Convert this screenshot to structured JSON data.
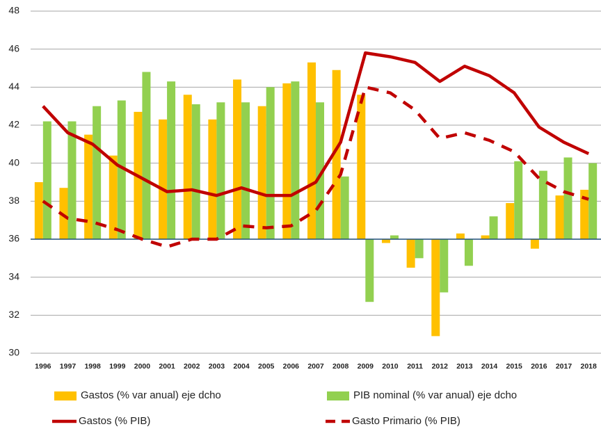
{
  "chart_data": {
    "type": "bar-line",
    "categories": [
      "1996",
      "1997",
      "1998",
      "1999",
      "2000",
      "2001",
      "2002",
      "2003",
      "2004",
      "2005",
      "2006",
      "2007",
      "2008",
      "2009",
      "2010",
      "2011",
      "2012",
      "2013",
      "2014",
      "2015",
      "2016",
      "2017",
      "2018"
    ],
    "ylim": [
      30,
      48
    ],
    "yticks": [
      30,
      32,
      34,
      36,
      38,
      40,
      42,
      44,
      46,
      48
    ],
    "y2lim": [
      -6,
      12
    ],
    "grid": true,
    "legend": "bottom",
    "series": [
      {
        "name": "Gastos (% var anual) eje dcho",
        "type": "bar",
        "axis": "y2",
        "color": "#ffc000",
        "values": [
          3.0,
          2.7,
          5.5,
          4.4,
          6.7,
          6.3,
          7.6,
          6.3,
          8.4,
          7.0,
          8.2,
          9.3,
          8.9,
          7.6,
          -0.2,
          -1.5,
          -5.1,
          0.3,
          0.2,
          1.9,
          -0.5,
          2.3,
          2.6
        ]
      },
      {
        "name": "PIB nominal (% var anual) eje dcho",
        "type": "bar",
        "axis": "y2",
        "color": "#92d050",
        "values": [
          6.2,
          6.2,
          7.0,
          7.3,
          8.8,
          8.3,
          7.1,
          7.2,
          7.2,
          8.0,
          8.3,
          7.2,
          3.3,
          -3.3,
          0.2,
          -1.0,
          -2.8,
          -1.4,
          1.2,
          4.1,
          3.6,
          4.3,
          4.0
        ]
      },
      {
        "name": "Gastos (% PIB)",
        "type": "line",
        "color": "#c00000",
        "values": [
          43.0,
          41.6,
          41.0,
          39.9,
          39.2,
          38.5,
          38.6,
          38.3,
          38.7,
          38.3,
          38.3,
          39.0,
          41.1,
          45.8,
          45.6,
          45.3,
          44.3,
          45.1,
          44.6,
          43.7,
          41.9,
          41.1,
          40.5
        ]
      },
      {
        "name": "Gasto Primario (% PIB)",
        "type": "line",
        "dashed": true,
        "color": "#c00000",
        "values": [
          38.0,
          37.1,
          36.9,
          36.5,
          36.0,
          35.6,
          36.0,
          36.0,
          36.7,
          36.6,
          36.7,
          37.5,
          39.4,
          44.0,
          43.7,
          42.8,
          41.3,
          41.6,
          41.2,
          40.6,
          39.2,
          38.5,
          38.1
        ]
      }
    ]
  }
}
